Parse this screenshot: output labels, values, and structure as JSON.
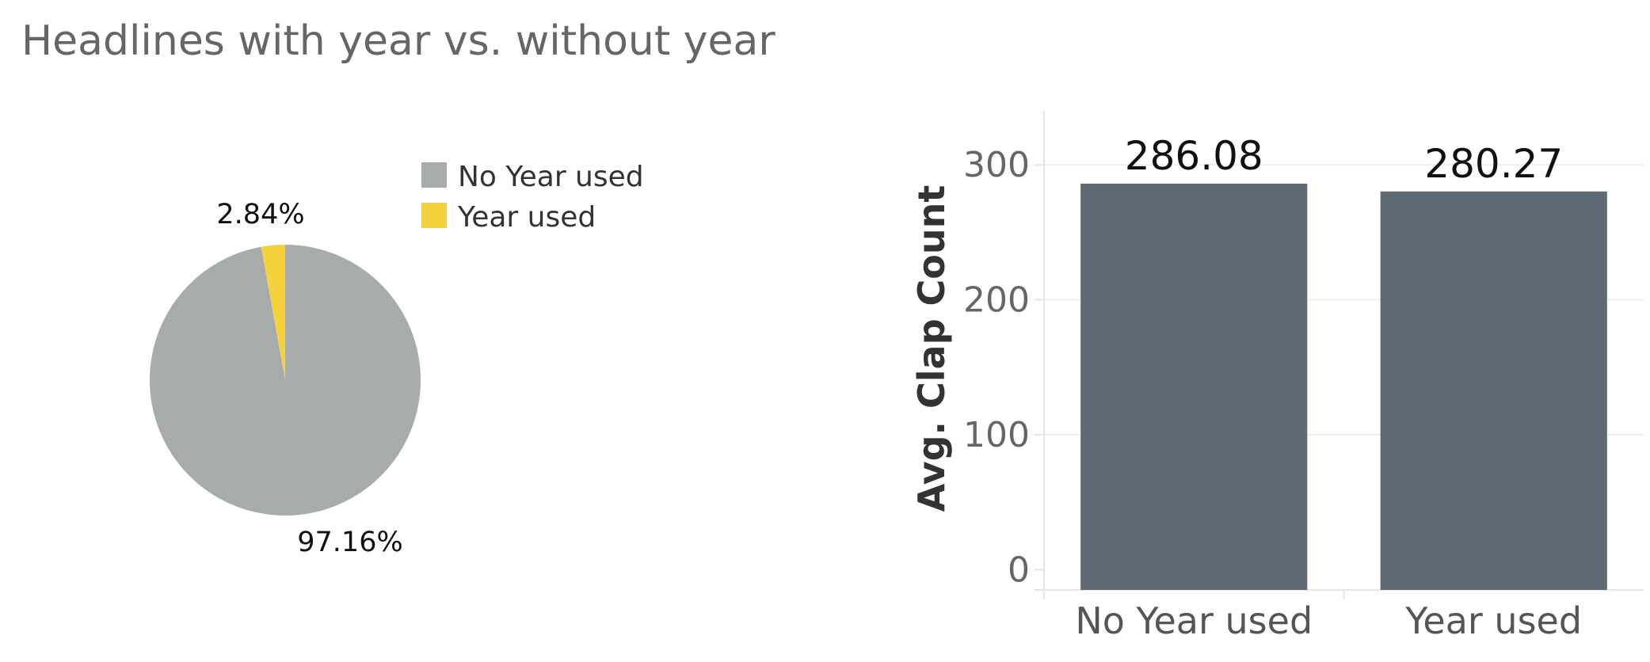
{
  "title": "Headlines with year vs. without year",
  "colors": {
    "no_year": "#a7abab",
    "year": "#f3d23e",
    "bar": "#606a74",
    "grid": "#efefef",
    "axis": "#e6e6e6"
  },
  "chart_data": [
    {
      "type": "pie",
      "slices": [
        {
          "label": "No Year used",
          "value": 97.16,
          "display": "97.16%"
        },
        {
          "label": "Year used",
          "value": 2.84,
          "display": "2.84%"
        }
      ],
      "legend": {
        "position": "top-right",
        "entries": [
          "No Year used",
          "Year used"
        ]
      }
    },
    {
      "type": "bar",
      "categories": [
        "No Year used",
        "Year used"
      ],
      "values": [
        286.08,
        280.27
      ],
      "value_labels": [
        "286.08",
        "280.27"
      ],
      "ylabel": "Avg. Clap Count",
      "ylim": [
        -15,
        340
      ],
      "yticks": [
        0,
        100,
        200,
        300
      ],
      "grid": true
    }
  ]
}
